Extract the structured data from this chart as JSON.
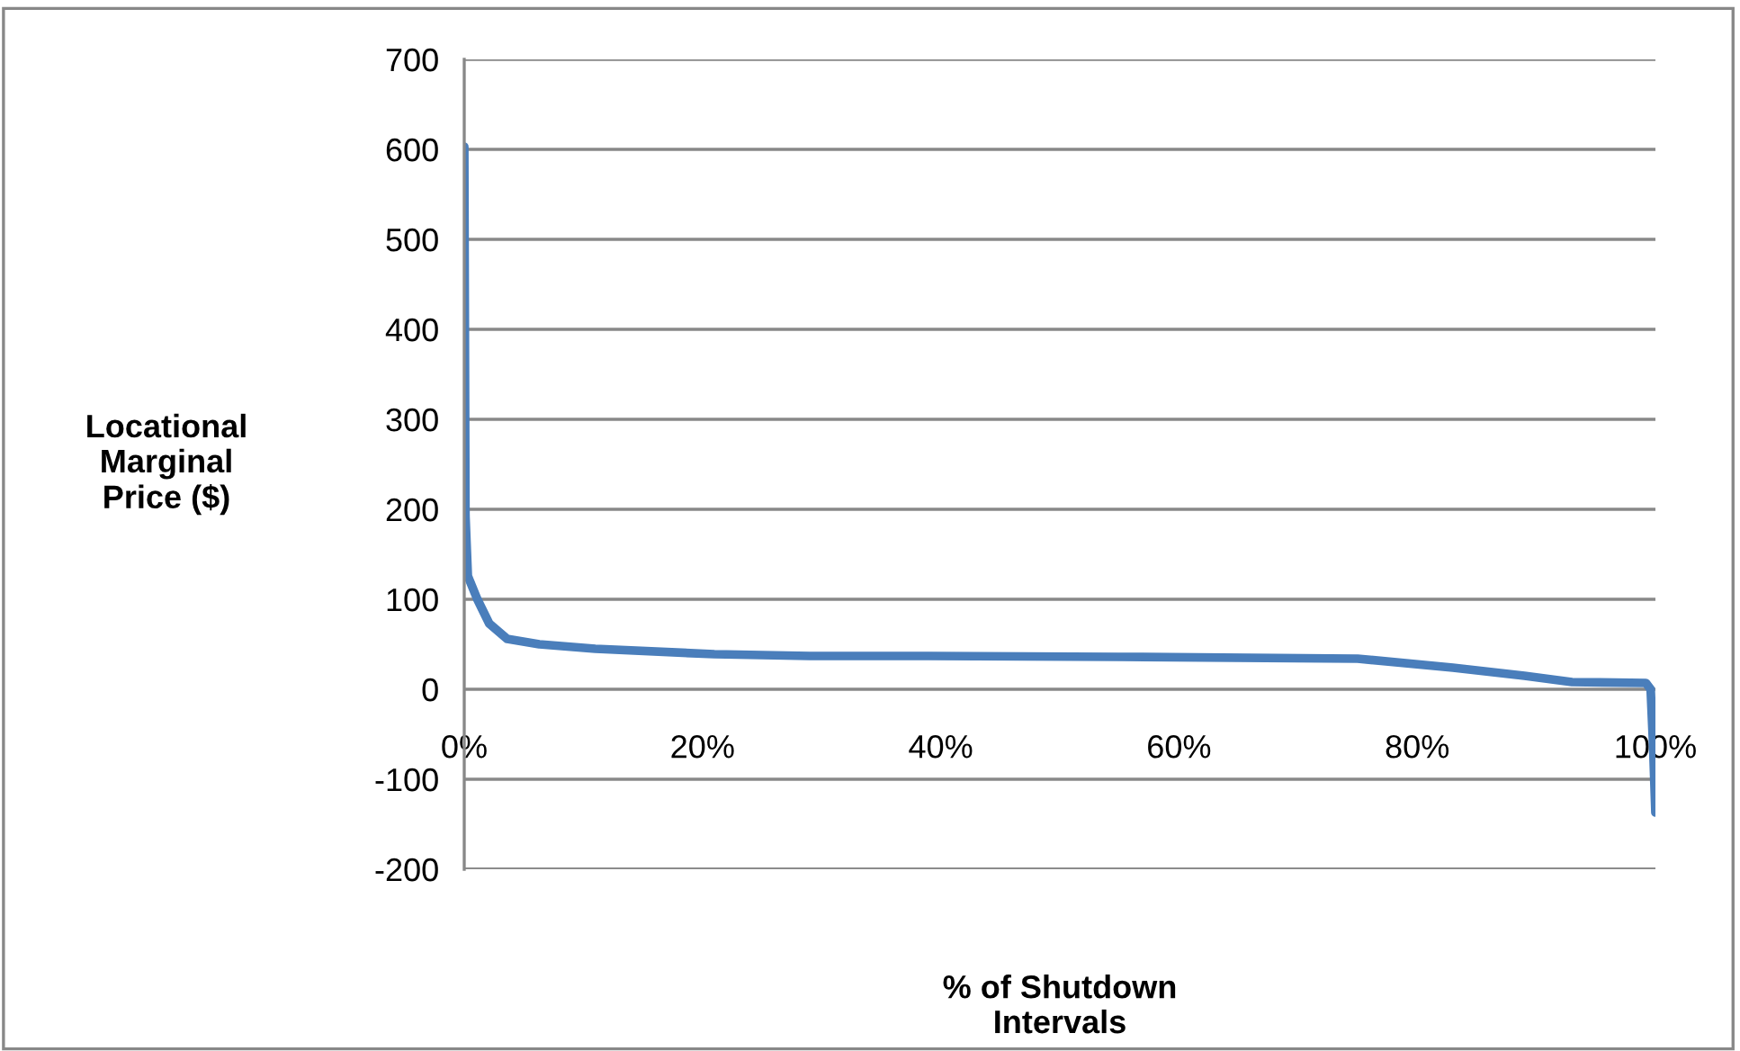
{
  "chart_data": {
    "type": "line",
    "xlabel": "% of Shutdown\nIntervals",
    "ylabel": "Locational\nMarginal\nPrice ($)",
    "x": [
      0,
      0.05,
      0.1,
      0.3,
      1.1,
      2.1,
      3.6,
      6.3,
      11,
      21,
      29,
      39,
      55,
      75,
      83,
      89,
      93,
      99.2,
      99.6,
      99.8,
      100
    ],
    "series": [
      {
        "color": "#4a7ebb",
        "values": [
          603,
          400,
          193,
          126,
          100,
          73,
          56,
          50,
          45,
          39,
          37,
          37,
          36,
          34,
          24,
          15,
          8,
          7,
          0,
          -60,
          -137
        ]
      }
    ],
    "xlim": [
      0,
      100
    ],
    "ylim": [
      -200,
      700
    ],
    "xticks": [
      {
        "value": 0,
        "label": "0%"
      },
      {
        "value": 20,
        "label": "20%"
      },
      {
        "value": 40,
        "label": "40%"
      },
      {
        "value": 60,
        "label": "60%"
      },
      {
        "value": 80,
        "label": "80%"
      },
      {
        "value": 100,
        "label": "100%"
      }
    ],
    "yticks": [
      -200,
      -100,
      0,
      100,
      200,
      300,
      400,
      500,
      600,
      700
    ],
    "grid": "y",
    "marker": "none",
    "line_style": "solid",
    "legend": false
  }
}
